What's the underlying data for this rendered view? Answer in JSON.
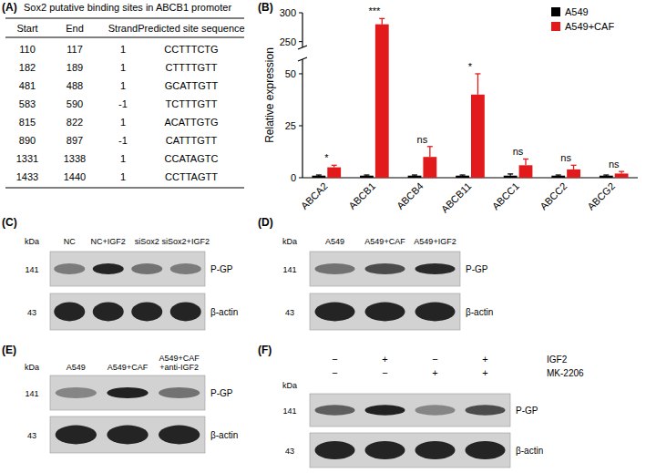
{
  "table": {
    "label": "(A)",
    "title": "Sox2 putative binding sites in ABCB1 promoter",
    "columns": [
      "Start",
      "End",
      "Strand",
      "Predicted site sequence"
    ],
    "rows": [
      [
        110,
        117,
        1,
        "CCTTTCTG"
      ],
      [
        182,
        189,
        1,
        "CTTTTGTT"
      ],
      [
        481,
        488,
        1,
        "GCATTGTT"
      ],
      [
        583,
        590,
        -1,
        "TCTTTGTT"
      ],
      [
        815,
        822,
        1,
        "ACATTGTG"
      ],
      [
        890,
        897,
        -1,
        "CATTTGTT"
      ],
      [
        1331,
        1338,
        1,
        "CCATAGTC"
      ],
      [
        1433,
        1440,
        1,
        "CCTTAGTT"
      ]
    ]
  },
  "chart_data": {
    "type": "bar",
    "panel_label": "(B)",
    "y_label": "Relative expression",
    "categories": [
      "ABCA2",
      "ABCB1",
      "ABCB4",
      "ABCB11",
      "ABCC1",
      "ABCC2",
      "ABCG2"
    ],
    "series": [
      {
        "name": "A549",
        "color": "#000000",
        "values": [
          1,
          1,
          1,
          1,
          1,
          1,
          1
        ],
        "errors": [
          0.3,
          0.3,
          0.3,
          0.3,
          0.8,
          0.3,
          0.3
        ]
      },
      {
        "name": "A549+CAF",
        "color": "#e31a1c",
        "values": [
          5,
          280,
          10,
          40,
          6,
          4,
          2
        ],
        "errors": [
          1,
          10,
          5,
          10,
          3,
          2,
          1
        ]
      }
    ],
    "annotations": [
      "*",
      "***",
      "ns",
      "*",
      "ns",
      "ns",
      "ns"
    ],
    "ylim": [
      0,
      300
    ],
    "yticks": [
      0,
      25,
      50,
      250,
      300
    ],
    "y_break": [
      57,
      240
    ],
    "legend": "top-right"
  },
  "blots": [
    {
      "label": "(C)",
      "unit": "kDa",
      "lanes": [
        "NC",
        "NC+IGF2",
        "siSox2",
        "siSox2+IGF2"
      ],
      "rows": [
        {
          "name": "P-GP",
          "size": 141,
          "intensities": [
            0.45,
            0.9,
            0.5,
            0.45
          ]
        },
        {
          "name": "β-actin",
          "size": 43,
          "intensities": [
            0.9,
            0.9,
            0.9,
            0.9
          ]
        }
      ]
    },
    {
      "label": "(D)",
      "unit": "kDa",
      "lanes": [
        "A549",
        "A549+CAF",
        "A549+IGF2"
      ],
      "rows": [
        {
          "name": "P-GP",
          "size": 141,
          "intensities": [
            0.5,
            0.7,
            0.88
          ]
        },
        {
          "name": "β-actin",
          "size": 43,
          "intensities": [
            0.9,
            0.9,
            0.9
          ]
        }
      ]
    },
    {
      "label": "(E)",
      "unit": "kDa",
      "lanes": [
        "A549",
        "A549+CAF",
        [
          "A549+CAF",
          "+anti-IGF2"
        ]
      ],
      "rows": [
        {
          "name": "P-GP",
          "size": 141,
          "intensities": [
            0.4,
            0.92,
            0.5
          ]
        },
        {
          "name": "β-actin",
          "size": 43,
          "intensities": [
            0.9,
            0.9,
            0.9
          ]
        }
      ]
    },
    {
      "label": "(F)",
      "unit": "kDa",
      "conditions": [
        {
          "name": "IGF2",
          "signs": [
            "−",
            "+",
            "−",
            "+"
          ]
        },
        {
          "name": "MK-2206",
          "signs": [
            "−",
            "−",
            "+",
            "+"
          ]
        }
      ],
      "rows": [
        {
          "name": "P-GP",
          "size": 141,
          "intensities": [
            0.6,
            0.92,
            0.4,
            0.7
          ]
        },
        {
          "name": "β-actin",
          "size": 43,
          "intensities": [
            0.9,
            0.9,
            0.9,
            0.9
          ]
        }
      ]
    }
  ]
}
